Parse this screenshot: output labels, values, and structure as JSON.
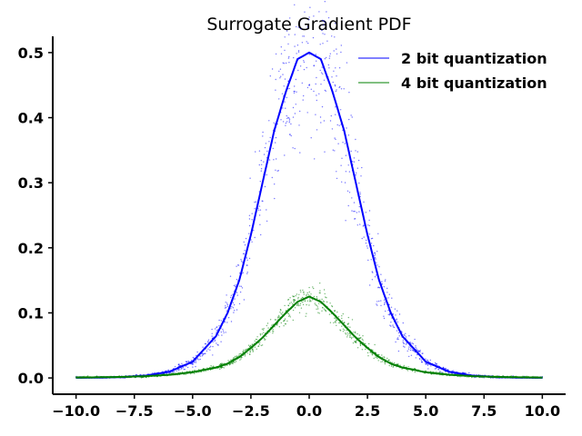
{
  "chart_data": {
    "type": "scatter",
    "title": "Surrogate Gradient PDF",
    "xlabel": "",
    "ylabel": "",
    "xlim": [
      -11,
      11
    ],
    "ylim": [
      -0.025,
      0.525
    ],
    "grid": false,
    "legend_position": "top-right",
    "x_ticks": [
      -10.0,
      -7.5,
      -5.0,
      -2.5,
      0.0,
      2.5,
      5.0,
      7.5,
      10.0
    ],
    "x_tick_labels": [
      "−10.0",
      "−7.5",
      "−5.0",
      "−2.5",
      "0.0",
      "2.5",
      "5.0",
      "7.5",
      "10.0"
    ],
    "y_ticks": [
      0.0,
      0.1,
      0.2,
      0.3,
      0.4,
      0.5
    ],
    "y_tick_labels": [
      "0.0",
      "0.1",
      "0.2",
      "0.3",
      "0.4",
      "0.5"
    ],
    "x": [
      -10,
      -9,
      -8,
      -7,
      -6,
      -5,
      -4,
      -3.5,
      -3,
      -2.5,
      -2,
      -1.5,
      -1,
      -0.5,
      0,
      0.5,
      1,
      1.5,
      2,
      2.5,
      3,
      3.5,
      4,
      5,
      6,
      7,
      8,
      9,
      10
    ],
    "series": [
      {
        "name": "2 bit quantization",
        "color": "#0000ff",
        "values": [
          0.0002,
          0.0005,
          0.0013,
          0.0036,
          0.0095,
          0.025,
          0.064,
          0.1,
          0.15,
          0.22,
          0.3,
          0.38,
          0.44,
          0.49,
          0.5,
          0.49,
          0.44,
          0.38,
          0.3,
          0.22,
          0.15,
          0.1,
          0.064,
          0.025,
          0.0095,
          0.0036,
          0.0013,
          0.0005,
          0.0002
        ]
      },
      {
        "name": "4 bit quantization",
        "color": "#008000",
        "values": [
          0.0006,
          0.001,
          0.0016,
          0.0028,
          0.0049,
          0.0088,
          0.016,
          0.022,
          0.032,
          0.046,
          0.062,
          0.081,
          0.1,
          0.117,
          0.125,
          0.117,
          0.1,
          0.081,
          0.062,
          0.046,
          0.032,
          0.022,
          0.016,
          0.0088,
          0.0049,
          0.0028,
          0.0016,
          0.001,
          0.0006
        ]
      }
    ]
  }
}
